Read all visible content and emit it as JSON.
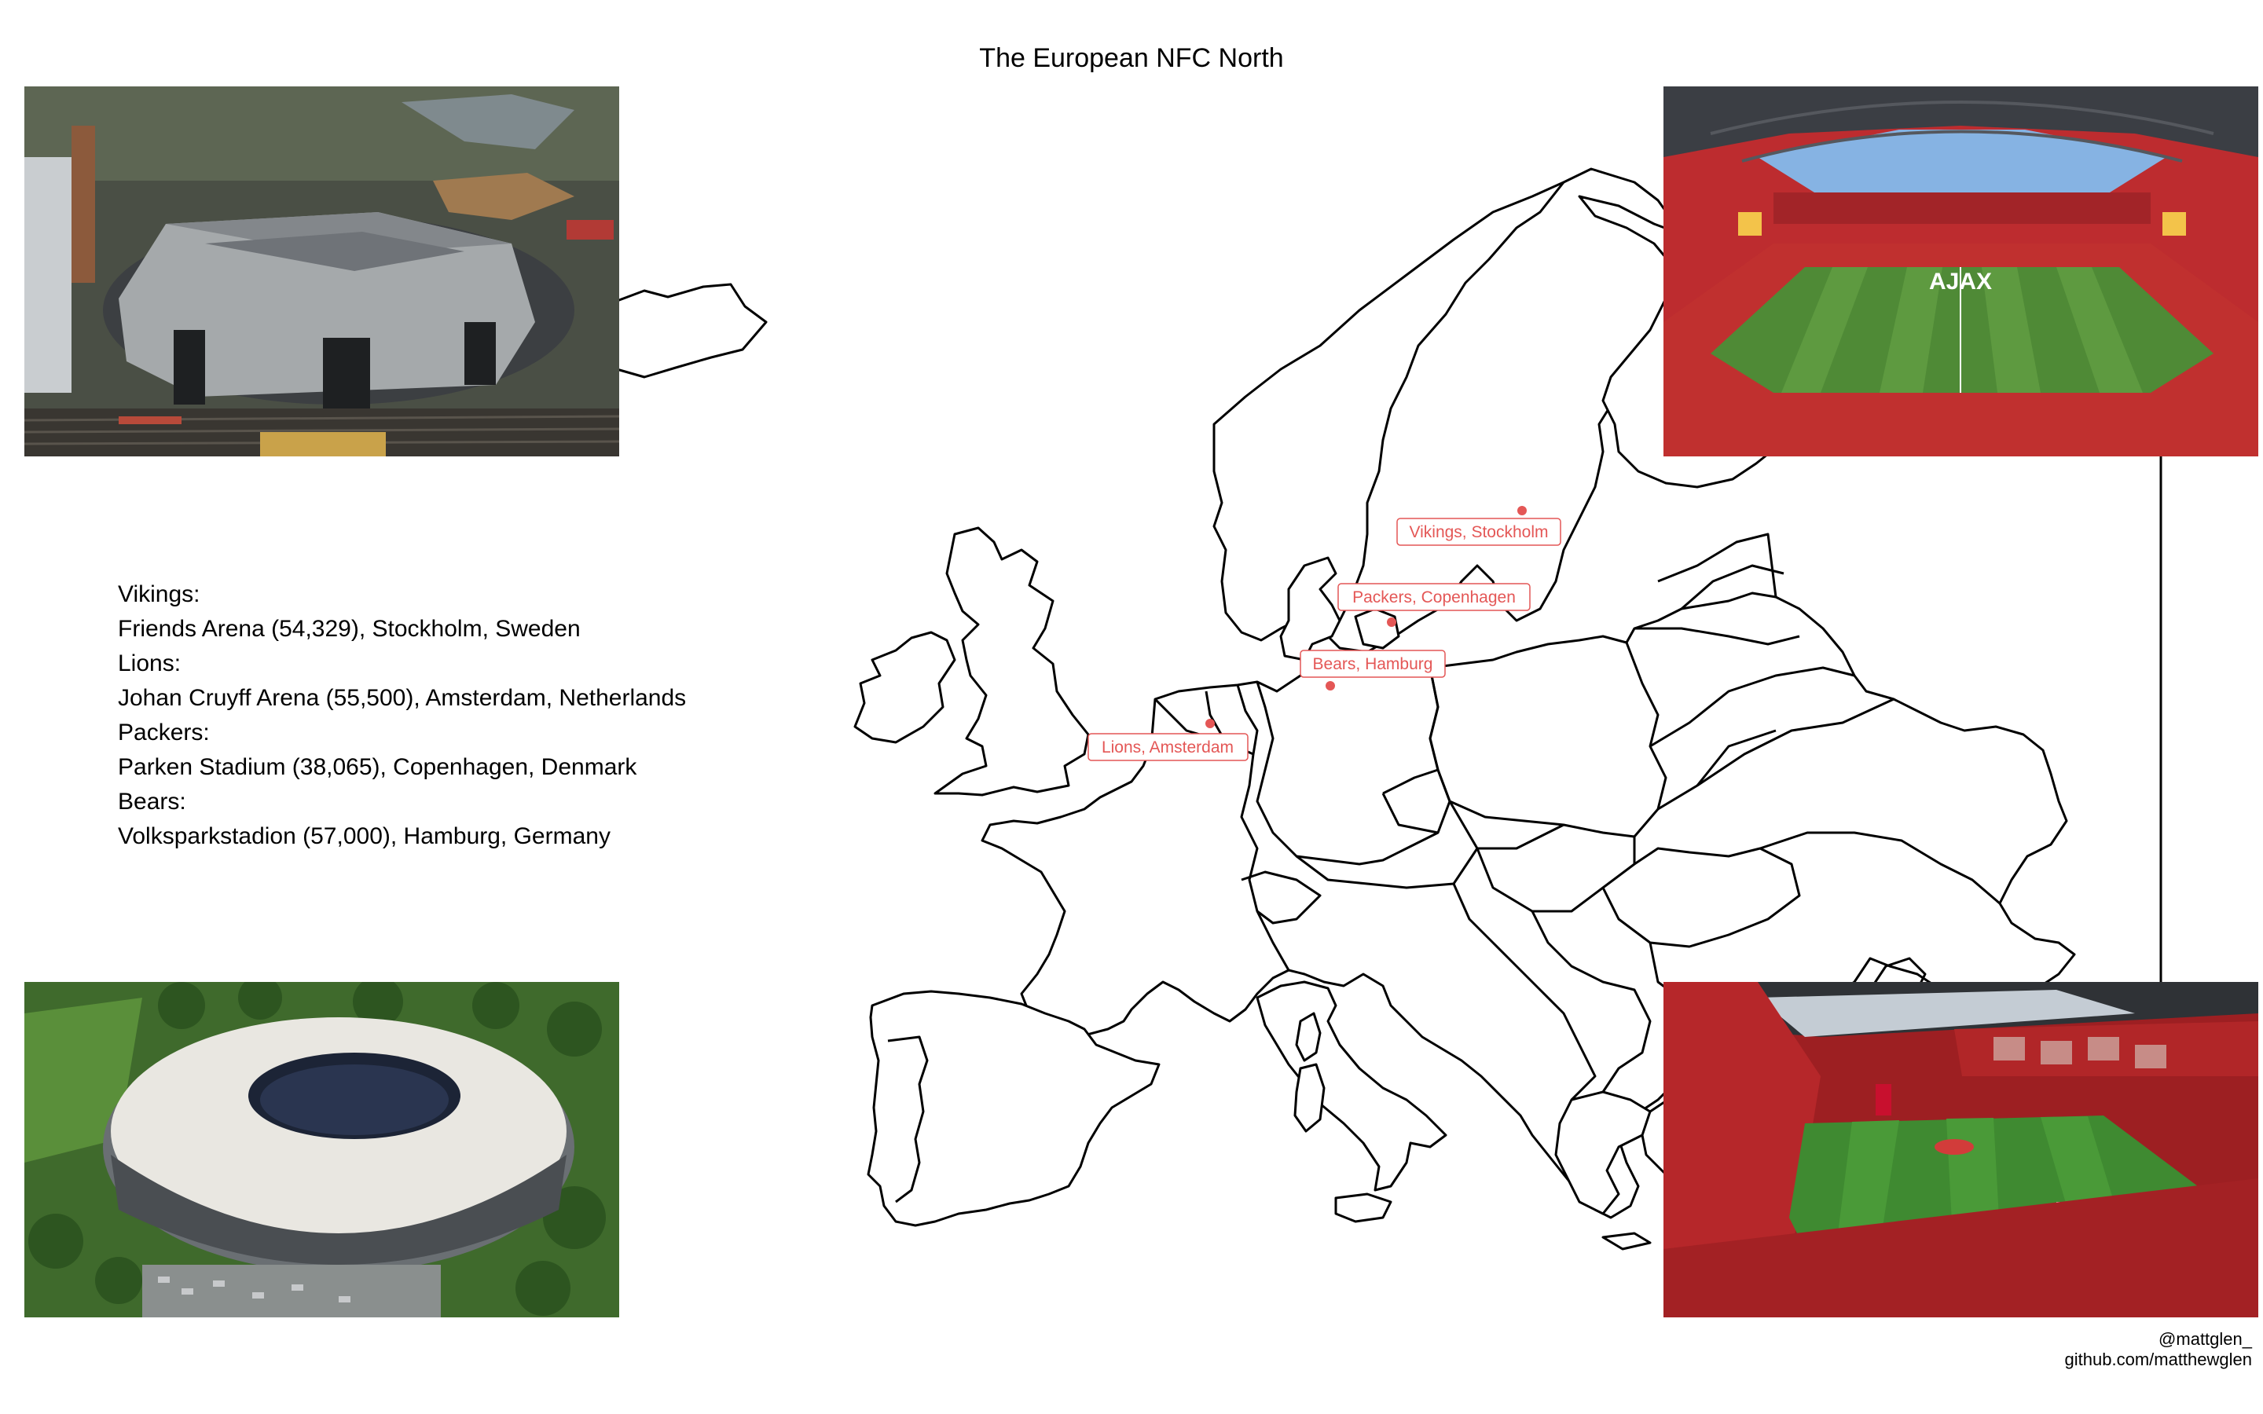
{
  "title": "The European NFC North",
  "info_lines": [
    "Vikings:",
    "Friends Arena (54,329), Stockholm, Sweden",
    "Lions:",
    "Johan Cruyff Arena (55,500), Amsterdam, Netherlands",
    "Packers:",
    "Parken Stadium (38,065), Copenhagen, Denmark",
    "Bears:",
    "Volksparkstadion (57,000), Hamburg, Germany"
  ],
  "credit": {
    "handle": "@mattglen_",
    "site": "github.com/matthewglen"
  },
  "map_labels": {
    "vikings": "Vikings, Stockholm",
    "packers": "Packers, Copenhagen",
    "bears": "Bears, Hamburg",
    "lions": "Lions, Amsterdam"
  },
  "photo_subjects": {
    "top_left": "Friends Arena aerial",
    "top_right": "Johan Cruyff Arena interior",
    "bottom_left": "Volksparkstadion aerial",
    "bottom_right": "Parken Stadium interior"
  },
  "photo_signage": {
    "ajax_sign": "AJAX"
  },
  "colors": {
    "marker": "#e45756",
    "outline": "#000000",
    "background": "#ffffff"
  }
}
